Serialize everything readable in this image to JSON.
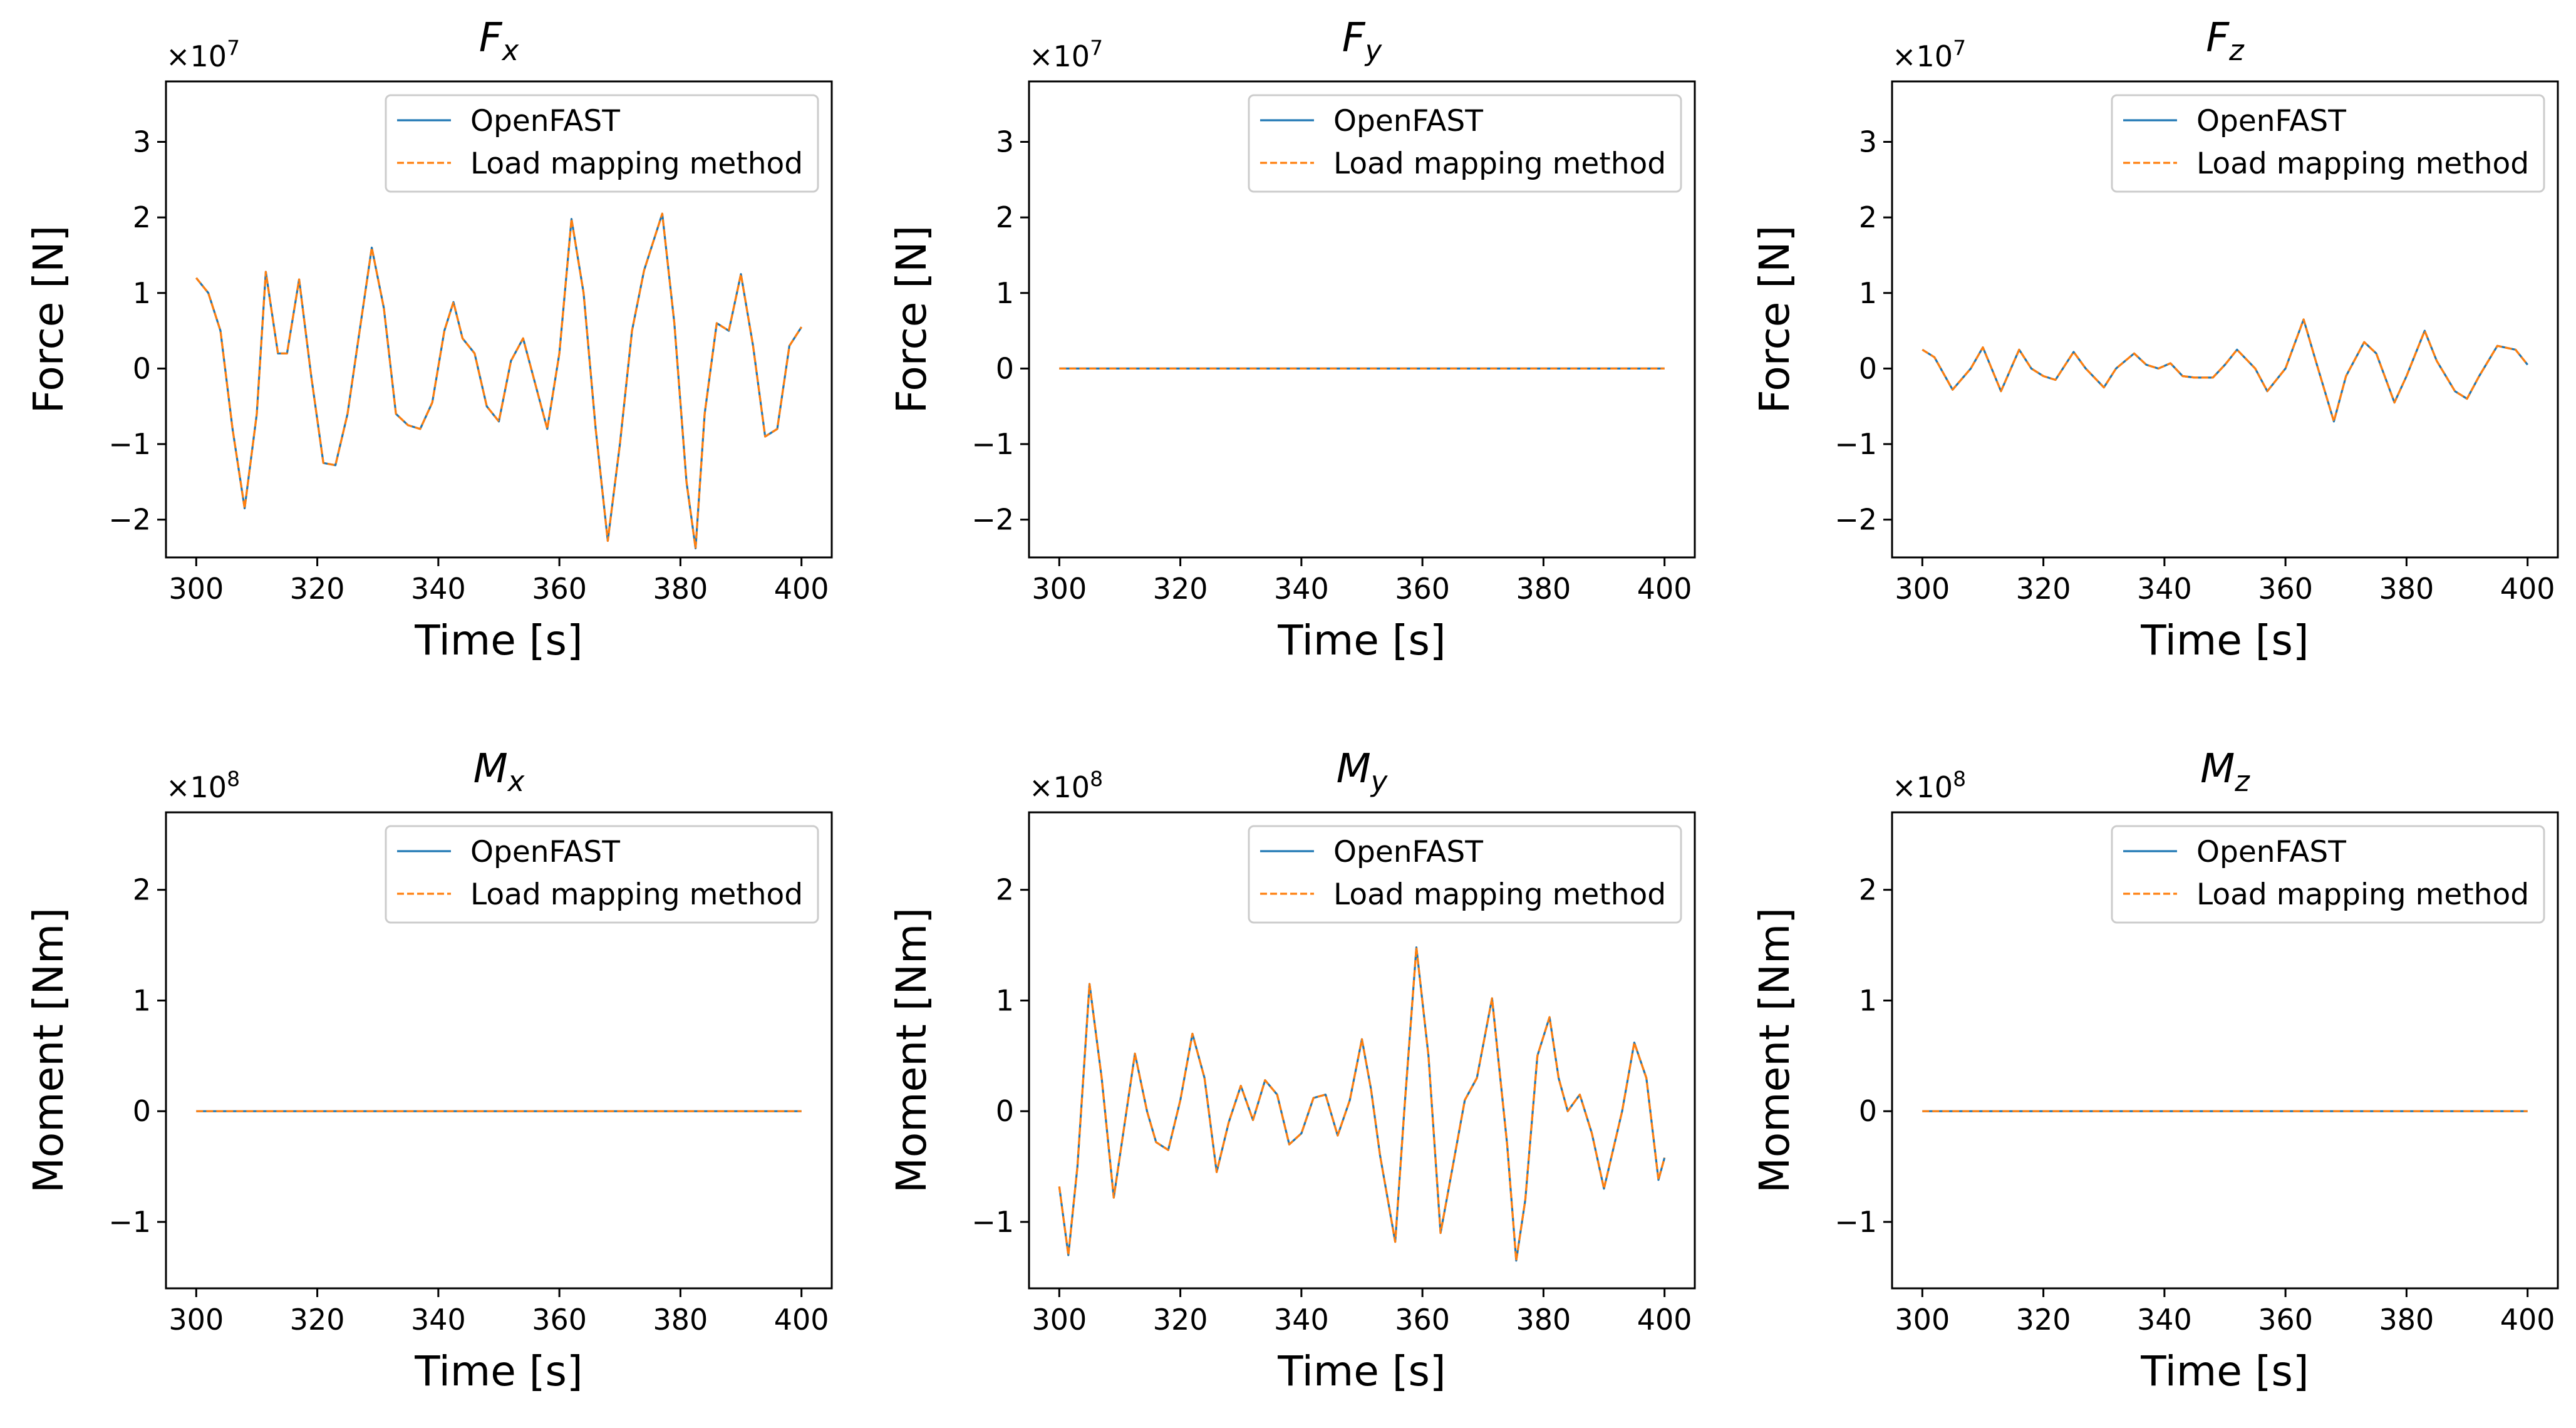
{
  "colors": {
    "openfast": "#1f77b4",
    "mapping": "#ff7f0e",
    "axis": "#000000",
    "legend_border": "#cccccc"
  },
  "chart_data": [
    {
      "type": "line",
      "id": "Fx",
      "title": "F",
      "title_sub": "x",
      "xlabel": "Time [s]",
      "ylabel": "Force [N]",
      "exponent_label": "×10",
      "exponent_power": "7",
      "xlim": [
        295,
        405
      ],
      "ylim": [
        -2.5,
        3.8
      ],
      "xticks": [
        300,
        320,
        340,
        360,
        380,
        400
      ],
      "yticks": [
        -2,
        -1,
        0,
        1,
        2,
        3
      ],
      "ytick_labels": [
        "−2",
        "−1",
        "0",
        "1",
        "2",
        "3"
      ],
      "legend_location": "upper right",
      "series": [
        {
          "name": "OpenFAST",
          "style": "solid",
          "x": [
            300,
            302,
            304,
            306,
            308,
            310,
            311.5,
            313.5,
            315,
            317,
            319,
            321,
            323,
            325,
            327,
            329,
            331,
            333,
            335,
            337,
            339,
            341,
            342.5,
            344,
            346,
            348,
            350,
            352,
            354,
            356,
            358,
            360,
            362,
            364,
            366,
            368,
            370,
            372,
            374,
            377,
            379,
            381,
            382.5,
            384,
            386,
            388,
            390,
            392,
            394,
            396,
            398,
            400
          ],
          "y": [
            1.2,
            1.0,
            0.5,
            -0.8,
            -1.85,
            -0.6,
            1.28,
            0.2,
            0.2,
            1.18,
            -0.1,
            -1.25,
            -1.28,
            -0.6,
            0.5,
            1.6,
            0.8,
            -0.6,
            -0.75,
            -0.8,
            -0.45,
            0.5,
            0.88,
            0.4,
            0.2,
            -0.5,
            -0.7,
            0.1,
            0.4,
            -0.2,
            -0.8,
            0.2,
            1.98,
            1.0,
            -0.8,
            -2.28,
            -1.0,
            0.5,
            1.3,
            2.05,
            0.6,
            -1.5,
            -2.38,
            -0.6,
            0.6,
            0.5,
            1.25,
            0.3,
            -0.9,
            -0.8,
            0.3,
            0.55
          ]
        },
        {
          "name": "Load mapping method",
          "style": "dashed",
          "x": [
            300,
            302,
            304,
            306,
            308,
            310,
            311.5,
            313.5,
            315,
            317,
            319,
            321,
            323,
            325,
            327,
            329,
            331,
            333,
            335,
            337,
            339,
            341,
            342.5,
            344,
            346,
            348,
            350,
            352,
            354,
            356,
            358,
            360,
            362,
            364,
            366,
            368,
            370,
            372,
            374,
            377,
            379,
            381,
            382.5,
            384,
            386,
            388,
            390,
            392,
            394,
            396,
            398,
            400
          ],
          "y": [
            1.2,
            1.0,
            0.5,
            -0.8,
            -1.85,
            -0.6,
            1.28,
            0.2,
            0.2,
            1.18,
            -0.1,
            -1.25,
            -1.28,
            -0.6,
            0.5,
            1.6,
            0.8,
            -0.6,
            -0.75,
            -0.8,
            -0.45,
            0.5,
            0.88,
            0.4,
            0.2,
            -0.5,
            -0.7,
            0.1,
            0.4,
            -0.2,
            -0.8,
            0.2,
            1.98,
            1.0,
            -0.8,
            -2.28,
            -1.0,
            0.5,
            1.3,
            2.05,
            0.6,
            -1.5,
            -2.38,
            -0.6,
            0.6,
            0.5,
            1.25,
            0.3,
            -0.9,
            -0.8,
            0.3,
            0.55
          ]
        }
      ]
    },
    {
      "type": "line",
      "id": "Fy",
      "title": "F",
      "title_sub": "y",
      "xlabel": "Time [s]",
      "ylabel": "Force [N]",
      "exponent_label": "×10",
      "exponent_power": "7",
      "xlim": [
        295,
        405
      ],
      "ylim": [
        -2.5,
        3.8
      ],
      "xticks": [
        300,
        320,
        340,
        360,
        380,
        400
      ],
      "yticks": [
        -2,
        -1,
        0,
        1,
        2,
        3
      ],
      "ytick_labels": [
        "−2",
        "−1",
        "0",
        "1",
        "2",
        "3"
      ],
      "legend_location": "upper right",
      "series": [
        {
          "name": "OpenFAST",
          "style": "solid",
          "x": [
            300,
            400
          ],
          "y": [
            0,
            0
          ]
        },
        {
          "name": "Load mapping method",
          "style": "dashed",
          "x": [
            300,
            400
          ],
          "y": [
            0,
            0
          ]
        }
      ]
    },
    {
      "type": "line",
      "id": "Fz",
      "title": "F",
      "title_sub": "z",
      "xlabel": "Time [s]",
      "ylabel": "Force [N]",
      "exponent_label": "×10",
      "exponent_power": "7",
      "xlim": [
        295,
        405
      ],
      "ylim": [
        -2.5,
        3.8
      ],
      "xticks": [
        300,
        320,
        340,
        360,
        380,
        400
      ],
      "yticks": [
        -2,
        -1,
        0,
        1,
        2,
        3
      ],
      "ytick_labels": [
        "−2",
        "−1",
        "0",
        "1",
        "2",
        "3"
      ],
      "legend_location": "upper right",
      "series": [
        {
          "name": "OpenFAST",
          "style": "solid",
          "x": [
            300,
            302,
            305,
            308,
            310,
            313,
            316,
            318,
            320,
            322,
            325,
            327,
            330,
            332,
            335,
            337,
            339,
            341,
            343,
            345,
            348,
            350,
            352,
            355,
            357,
            360,
            363,
            365,
            368,
            370,
            373,
            375,
            378,
            380,
            383,
            385,
            388,
            390,
            392,
            395,
            398,
            400
          ],
          "y": [
            0.25,
            0.15,
            -0.28,
            0.0,
            0.28,
            -0.3,
            0.25,
            0.0,
            -0.1,
            -0.15,
            0.22,
            0.0,
            -0.25,
            0.0,
            0.2,
            0.05,
            0.0,
            0.07,
            -0.1,
            -0.12,
            -0.12,
            0.05,
            0.25,
            0.0,
            -0.3,
            0.0,
            0.65,
            0.1,
            -0.7,
            -0.1,
            0.35,
            0.2,
            -0.45,
            -0.1,
            0.5,
            0.1,
            -0.3,
            -0.4,
            -0.1,
            0.3,
            0.25,
            0.05
          ]
        },
        {
          "name": "Load mapping method",
          "style": "dashed",
          "x": [
            300,
            302,
            305,
            308,
            310,
            313,
            316,
            318,
            320,
            322,
            325,
            327,
            330,
            332,
            335,
            337,
            339,
            341,
            343,
            345,
            348,
            350,
            352,
            355,
            357,
            360,
            363,
            365,
            368,
            370,
            373,
            375,
            378,
            380,
            383,
            385,
            388,
            390,
            392,
            395,
            398,
            400
          ],
          "y": [
            0.25,
            0.15,
            -0.28,
            0.0,
            0.28,
            -0.3,
            0.25,
            0.0,
            -0.1,
            -0.15,
            0.22,
            0.0,
            -0.25,
            0.0,
            0.2,
            0.05,
            0.0,
            0.07,
            -0.1,
            -0.12,
            -0.12,
            0.05,
            0.25,
            0.0,
            -0.3,
            0.0,
            0.65,
            0.1,
            -0.7,
            -0.1,
            0.35,
            0.2,
            -0.45,
            -0.1,
            0.5,
            0.1,
            -0.3,
            -0.4,
            -0.1,
            0.3,
            0.25,
            0.05
          ]
        }
      ]
    },
    {
      "type": "line",
      "id": "Mx",
      "title": "M",
      "title_sub": "x",
      "xlabel": "Time [s]",
      "ylabel": "Moment [Nm]",
      "exponent_label": "×10",
      "exponent_power": "8",
      "xlim": [
        295,
        405
      ],
      "ylim": [
        -1.6,
        2.7
      ],
      "xticks": [
        300,
        320,
        340,
        360,
        380,
        400
      ],
      "yticks": [
        -1,
        0,
        1,
        2
      ],
      "ytick_labels": [
        "−1",
        "0",
        "1",
        "2"
      ],
      "legend_location": "upper right",
      "series": [
        {
          "name": "OpenFAST",
          "style": "solid",
          "x": [
            300,
            400
          ],
          "y": [
            0,
            0
          ]
        },
        {
          "name": "Load mapping method",
          "style": "dashed",
          "x": [
            300,
            400
          ],
          "y": [
            0,
            0
          ]
        }
      ]
    },
    {
      "type": "line",
      "id": "My",
      "title": "M",
      "title_sub": "y",
      "xlabel": "Time [s]",
      "ylabel": "Moment [Nm]",
      "exponent_label": "×10",
      "exponent_power": "8",
      "xlim": [
        295,
        405
      ],
      "ylim": [
        -1.6,
        2.7
      ],
      "xticks": [
        300,
        320,
        340,
        360,
        380,
        400
      ],
      "yticks": [
        -1,
        0,
        1,
        2
      ],
      "ytick_labels": [
        "−1",
        "0",
        "1",
        "2"
      ],
      "legend_location": "upper right",
      "series": [
        {
          "name": "OpenFAST",
          "style": "solid",
          "x": [
            300,
            301.5,
            303,
            305,
            307,
            309,
            312.5,
            314.5,
            316,
            318,
            320,
            322,
            324,
            326,
            328,
            330,
            332,
            334,
            336,
            338,
            340,
            342,
            344,
            346,
            348,
            350,
            351.5,
            353,
            355.5,
            357,
            359,
            361,
            363,
            365,
            367,
            369,
            371.5,
            374,
            375.5,
            377,
            379,
            381,
            382.5,
            384,
            386,
            388,
            390,
            393,
            395,
            397,
            399,
            400
          ],
          "y": [
            -0.68,
            -1.3,
            -0.5,
            1.15,
            0.3,
            -0.78,
            0.52,
            0.0,
            -0.28,
            -0.35,
            0.1,
            0.7,
            0.3,
            -0.55,
            -0.1,
            0.23,
            -0.08,
            0.28,
            0.15,
            -0.3,
            -0.2,
            0.12,
            0.15,
            -0.22,
            0.1,
            0.65,
            0.2,
            -0.4,
            -1.18,
            0.0,
            1.48,
            0.5,
            -1.1,
            -0.5,
            0.1,
            0.3,
            1.02,
            -0.3,
            -1.35,
            -0.8,
            0.5,
            0.85,
            0.3,
            0.0,
            0.15,
            -0.2,
            -0.7,
            0.0,
            0.62,
            0.3,
            -0.62,
            -0.42
          ]
        },
        {
          "name": "Load mapping method",
          "style": "dashed",
          "x": [
            300,
            301.5,
            303,
            305,
            307,
            309,
            312.5,
            314.5,
            316,
            318,
            320,
            322,
            324,
            326,
            328,
            330,
            332,
            334,
            336,
            338,
            340,
            342,
            344,
            346,
            348,
            350,
            351.5,
            353,
            355.5,
            357,
            359,
            361,
            363,
            365,
            367,
            369,
            371.5,
            374,
            375.5,
            377,
            379,
            381,
            382.5,
            384,
            386,
            388,
            390,
            393,
            395,
            397,
            399,
            400
          ],
          "y": [
            -0.68,
            -1.3,
            -0.5,
            1.15,
            0.3,
            -0.78,
            0.52,
            0.0,
            -0.28,
            -0.35,
            0.1,
            0.7,
            0.3,
            -0.55,
            -0.1,
            0.23,
            -0.08,
            0.28,
            0.15,
            -0.3,
            -0.2,
            0.12,
            0.15,
            -0.22,
            0.1,
            0.65,
            0.2,
            -0.4,
            -1.18,
            0.0,
            1.48,
            0.5,
            -1.1,
            -0.5,
            0.1,
            0.3,
            1.02,
            -0.3,
            -1.35,
            -0.8,
            0.5,
            0.85,
            0.3,
            0.0,
            0.15,
            -0.2,
            -0.7,
            0.0,
            0.62,
            0.3,
            -0.62,
            -0.42
          ]
        }
      ]
    },
    {
      "type": "line",
      "id": "Mz",
      "title": "M",
      "title_sub": "z",
      "xlabel": "Time [s]",
      "ylabel": "Moment [Nm]",
      "exponent_label": "×10",
      "exponent_power": "8",
      "xlim": [
        295,
        405
      ],
      "ylim": [
        -1.6,
        2.7
      ],
      "xticks": [
        300,
        320,
        340,
        360,
        380,
        400
      ],
      "yticks": [
        -1,
        0,
        1,
        2
      ],
      "ytick_labels": [
        "−1",
        "0",
        "1",
        "2"
      ],
      "legend_location": "upper right",
      "series": [
        {
          "name": "OpenFAST",
          "style": "solid",
          "x": [
            300,
            400
          ],
          "y": [
            0,
            0
          ]
        },
        {
          "name": "Load mapping method",
          "style": "dashed",
          "x": [
            300,
            400
          ],
          "y": [
            0,
            0
          ]
        }
      ]
    }
  ]
}
